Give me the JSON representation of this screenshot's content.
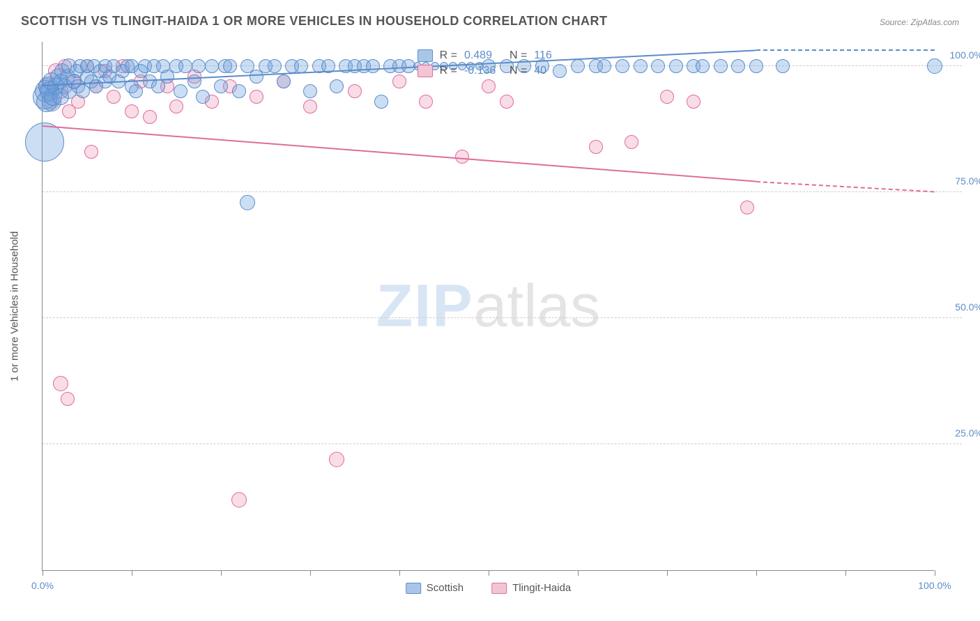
{
  "chart": {
    "type": "scatter",
    "title": "SCOTTISH VS TLINGIT-HAIDA 1 OR MORE VEHICLES IN HOUSEHOLD CORRELATION CHART",
    "source_prefix": "Source: ",
    "source_link": "ZipAtlas.com",
    "y_axis_title": "1 or more Vehicles in Household",
    "watermark_zip": "ZIP",
    "watermark_atlas": "atlas",
    "xlim": [
      0,
      100
    ],
    "ylim": [
      0,
      105
    ],
    "x_ticks": [
      0,
      10,
      20,
      30,
      40,
      50,
      60,
      70,
      80,
      90,
      100
    ],
    "x_tick_labels": {
      "0": "0.0%",
      "100": "100.0%"
    },
    "y_gridlines": [
      25,
      50,
      75,
      100
    ],
    "y_tick_labels": {
      "25": "25.0%",
      "50": "50.0%",
      "75": "75.0%",
      "100": "100.0%"
    },
    "background_color": "#ffffff",
    "grid_color": "#cccccc",
    "axis_color": "#888888",
    "tick_label_color": "#5b8cc9",
    "text_color": "#555555",
    "stats_box": {
      "left_pct": 42,
      "top_pct_from_top": 1.5
    },
    "series": {
      "scottish": {
        "label": "Scottish",
        "color_fill": "rgba(110,160,220,0.35)",
        "color_stroke": "#5b8cc9",
        "swatch_fill": "#a9c6e8",
        "swatch_border": "#5b8cc9",
        "R_label": "R = ",
        "R": "0.489",
        "N_label": "N = ",
        "N": "116",
        "trend": {
          "x1": 0,
          "y1": 96,
          "x2": 80,
          "y2": 103,
          "solid": true,
          "dash_extend_to": 100,
          "dash_y": 103
        },
        "points": [
          {
            "x": 0.2,
            "y": 85,
            "r": 28
          },
          {
            "x": 0.3,
            "y": 94,
            "r": 18
          },
          {
            "x": 0.4,
            "y": 95,
            "r": 16
          },
          {
            "x": 0.5,
            "y": 93,
            "r": 15
          },
          {
            "x": 0.6,
            "y": 96,
            "r": 14
          },
          {
            "x": 0.8,
            "y": 95,
            "r": 14
          },
          {
            "x": 1,
            "y": 93,
            "r": 14
          },
          {
            "x": 1,
            "y": 97,
            "r": 13
          },
          {
            "x": 1.2,
            "y": 94,
            "r": 13
          },
          {
            "x": 1.5,
            "y": 96,
            "r": 12
          },
          {
            "x": 1.8,
            "y": 98,
            "r": 12
          },
          {
            "x": 2,
            "y": 94,
            "r": 12
          },
          {
            "x": 2,
            "y": 97,
            "r": 11
          },
          {
            "x": 2.2,
            "y": 99,
            "r": 11
          },
          {
            "x": 2.5,
            "y": 96,
            "r": 11
          },
          {
            "x": 2.8,
            "y": 98,
            "r": 11
          },
          {
            "x": 3,
            "y": 95,
            "r": 11
          },
          {
            "x": 3,
            "y": 100,
            "r": 11
          },
          {
            "x": 3.5,
            "y": 97,
            "r": 11
          },
          {
            "x": 3.8,
            "y": 99,
            "r": 10
          },
          {
            "x": 4,
            "y": 96,
            "r": 10
          },
          {
            "x": 4.2,
            "y": 100,
            "r": 10
          },
          {
            "x": 4.5,
            "y": 95,
            "r": 10
          },
          {
            "x": 5,
            "y": 98,
            "r": 10
          },
          {
            "x": 5,
            "y": 100,
            "r": 10
          },
          {
            "x": 5.5,
            "y": 97,
            "r": 10
          },
          {
            "x": 5.8,
            "y": 100,
            "r": 10
          },
          {
            "x": 6,
            "y": 96,
            "r": 10
          },
          {
            "x": 6.5,
            "y": 99,
            "r": 10
          },
          {
            "x": 7,
            "y": 97,
            "r": 10
          },
          {
            "x": 7,
            "y": 100,
            "r": 10
          },
          {
            "x": 7.5,
            "y": 98,
            "r": 10
          },
          {
            "x": 8,
            "y": 100,
            "r": 10
          },
          {
            "x": 8.5,
            "y": 97,
            "r": 10
          },
          {
            "x": 9,
            "y": 99,
            "r": 10
          },
          {
            "x": 9.5,
            "y": 100,
            "r": 10
          },
          {
            "x": 10,
            "y": 96,
            "r": 10
          },
          {
            "x": 10,
            "y": 100,
            "r": 10
          },
          {
            "x": 10.5,
            "y": 95,
            "r": 10
          },
          {
            "x": 11,
            "y": 99,
            "r": 10
          },
          {
            "x": 11.5,
            "y": 100,
            "r": 10
          },
          {
            "x": 12,
            "y": 97,
            "r": 10
          },
          {
            "x": 12.5,
            "y": 100,
            "r": 10
          },
          {
            "x": 13,
            "y": 96,
            "r": 10
          },
          {
            "x": 13.5,
            "y": 100,
            "r": 10
          },
          {
            "x": 14,
            "y": 98,
            "r": 10
          },
          {
            "x": 15,
            "y": 100,
            "r": 10
          },
          {
            "x": 15.5,
            "y": 95,
            "r": 10
          },
          {
            "x": 16,
            "y": 100,
            "r": 10
          },
          {
            "x": 17,
            "y": 97,
            "r": 10
          },
          {
            "x": 17.5,
            "y": 100,
            "r": 10
          },
          {
            "x": 18,
            "y": 94,
            "r": 10
          },
          {
            "x": 19,
            "y": 100,
            "r": 10
          },
          {
            "x": 20,
            "y": 96,
            "r": 10
          },
          {
            "x": 20.5,
            "y": 100,
            "r": 10
          },
          {
            "x": 21,
            "y": 100,
            "r": 10
          },
          {
            "x": 22,
            "y": 95,
            "r": 10
          },
          {
            "x": 23,
            "y": 100,
            "r": 10
          },
          {
            "x": 24,
            "y": 98,
            "r": 10
          },
          {
            "x": 25,
            "y": 100,
            "r": 10
          },
          {
            "x": 23,
            "y": 73,
            "r": 11
          },
          {
            "x": 26,
            "y": 100,
            "r": 10
          },
          {
            "x": 27,
            "y": 97,
            "r": 10
          },
          {
            "x": 28,
            "y": 100,
            "r": 10
          },
          {
            "x": 29,
            "y": 100,
            "r": 10
          },
          {
            "x": 30,
            "y": 95,
            "r": 10
          },
          {
            "x": 31,
            "y": 100,
            "r": 10
          },
          {
            "x": 32,
            "y": 100,
            "r": 10
          },
          {
            "x": 33,
            "y": 96,
            "r": 10
          },
          {
            "x": 34,
            "y": 100,
            "r": 10
          },
          {
            "x": 35,
            "y": 100,
            "r": 10
          },
          {
            "x": 36,
            "y": 100,
            "r": 10
          },
          {
            "x": 37,
            "y": 100,
            "r": 10
          },
          {
            "x": 38,
            "y": 93,
            "r": 10
          },
          {
            "x": 39,
            "y": 100,
            "r": 10
          },
          {
            "x": 40,
            "y": 100,
            "r": 10
          },
          {
            "x": 41,
            "y": 100,
            "r": 10
          },
          {
            "x": 42,
            "y": 100,
            "r": 6
          },
          {
            "x": 43,
            "y": 100,
            "r": 6
          },
          {
            "x": 44,
            "y": 100,
            "r": 6
          },
          {
            "x": 45,
            "y": 100,
            "r": 6
          },
          {
            "x": 46,
            "y": 100,
            "r": 6
          },
          {
            "x": 47,
            "y": 100,
            "r": 6
          },
          {
            "x": 48,
            "y": 100,
            "r": 6
          },
          {
            "x": 49,
            "y": 100,
            "r": 6
          },
          {
            "x": 50,
            "y": 100,
            "r": 10
          },
          {
            "x": 52,
            "y": 100,
            "r": 10
          },
          {
            "x": 54,
            "y": 100,
            "r": 10
          },
          {
            "x": 56,
            "y": 100,
            "r": 10
          },
          {
            "x": 58,
            "y": 99,
            "r": 10
          },
          {
            "x": 60,
            "y": 100,
            "r": 10
          },
          {
            "x": 62,
            "y": 100,
            "r": 10
          },
          {
            "x": 63,
            "y": 100,
            "r": 10
          },
          {
            "x": 65,
            "y": 100,
            "r": 10
          },
          {
            "x": 67,
            "y": 100,
            "r": 10
          },
          {
            "x": 69,
            "y": 100,
            "r": 10
          },
          {
            "x": 71,
            "y": 100,
            "r": 10
          },
          {
            "x": 73,
            "y": 100,
            "r": 10
          },
          {
            "x": 74,
            "y": 100,
            "r": 10
          },
          {
            "x": 76,
            "y": 100,
            "r": 10
          },
          {
            "x": 78,
            "y": 100,
            "r": 10
          },
          {
            "x": 80,
            "y": 100,
            "r": 10
          },
          {
            "x": 83,
            "y": 100,
            "r": 10
          },
          {
            "x": 100,
            "y": 100,
            "r": 11
          }
        ]
      },
      "tlingit": {
        "label": "Tlingit-Haida",
        "color_fill": "rgba(230,130,170,0.28)",
        "color_stroke": "#e06b9a",
        "swatch_fill": "#f2c4d6",
        "swatch_border": "#e06b9a",
        "R_label": "R = ",
        "R": "-0.136",
        "N_label": "N = ",
        "N": "40",
        "trend": {
          "x1": 0,
          "y1": 88,
          "x2": 80,
          "y2": 77,
          "solid": true,
          "dash_extend_to": 100,
          "dash_y": 75
        },
        "points": [
          {
            "x": 0.5,
            "y": 96,
            "r": 12
          },
          {
            "x": 1,
            "y": 93,
            "r": 11
          },
          {
            "x": 1.5,
            "y": 99,
            "r": 11
          },
          {
            "x": 2,
            "y": 95,
            "r": 11
          },
          {
            "x": 2.5,
            "y": 100,
            "r": 10
          },
          {
            "x": 3,
            "y": 91,
            "r": 10
          },
          {
            "x": 2,
            "y": 37,
            "r": 11
          },
          {
            "x": 2.8,
            "y": 34,
            "r": 10
          },
          {
            "x": 3.5,
            "y": 97,
            "r": 10
          },
          {
            "x": 4,
            "y": 93,
            "r": 10
          },
          {
            "x": 5,
            "y": 100,
            "r": 10
          },
          {
            "x": 5.5,
            "y": 83,
            "r": 10
          },
          {
            "x": 6,
            "y": 96,
            "r": 10
          },
          {
            "x": 7,
            "y": 99,
            "r": 10
          },
          {
            "x": 8,
            "y": 94,
            "r": 10
          },
          {
            "x": 9,
            "y": 100,
            "r": 10
          },
          {
            "x": 10,
            "y": 91,
            "r": 10
          },
          {
            "x": 11,
            "y": 97,
            "r": 10
          },
          {
            "x": 12,
            "y": 90,
            "r": 10
          },
          {
            "x": 14,
            "y": 96,
            "r": 10
          },
          {
            "x": 15,
            "y": 92,
            "r": 10
          },
          {
            "x": 17,
            "y": 98,
            "r": 10
          },
          {
            "x": 19,
            "y": 93,
            "r": 10
          },
          {
            "x": 21,
            "y": 96,
            "r": 10
          },
          {
            "x": 22,
            "y": 14,
            "r": 11
          },
          {
            "x": 24,
            "y": 94,
            "r": 10
          },
          {
            "x": 27,
            "y": 97,
            "r": 10
          },
          {
            "x": 30,
            "y": 92,
            "r": 10
          },
          {
            "x": 33,
            "y": 22,
            "r": 11
          },
          {
            "x": 35,
            "y": 95,
            "r": 10
          },
          {
            "x": 40,
            "y": 97,
            "r": 10
          },
          {
            "x": 43,
            "y": 93,
            "r": 10
          },
          {
            "x": 47,
            "y": 82,
            "r": 10
          },
          {
            "x": 50,
            "y": 96,
            "r": 10
          },
          {
            "x": 52,
            "y": 93,
            "r": 10
          },
          {
            "x": 62,
            "y": 84,
            "r": 10
          },
          {
            "x": 66,
            "y": 85,
            "r": 10
          },
          {
            "x": 70,
            "y": 94,
            "r": 10
          },
          {
            "x": 73,
            "y": 93,
            "r": 10
          },
          {
            "x": 79,
            "y": 72,
            "r": 10
          }
        ]
      }
    },
    "legend": [
      {
        "key": "scottish"
      },
      {
        "key": "tlingit"
      }
    ]
  }
}
